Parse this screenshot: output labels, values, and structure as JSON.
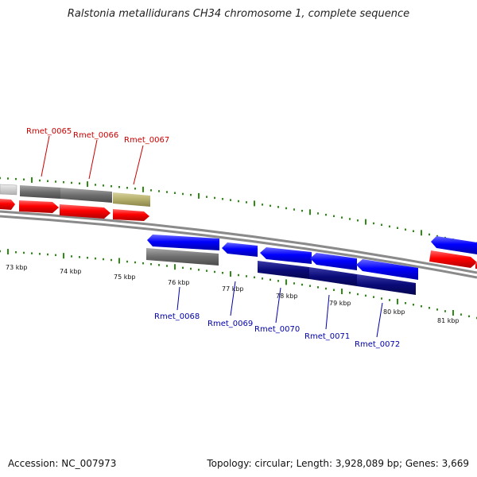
{
  "title": "Ralstonia metallidurans CH34 chromosome 1, complete sequence",
  "footer": {
    "accession": "Accession: NC_007973",
    "topology": "Topology: circular; Length: 3,928,089 bp; Genes: 3,669"
  },
  "colors": {
    "forward_cds": "#ff0000",
    "reverse_cds": "#0000ff",
    "forward_cog": "#6e6e6e",
    "reverse_cog_dark": "#0a0a78",
    "olive": "#b4ae6a",
    "tick": "#2c8c14",
    "label_forward": "#cc0000",
    "label_reverse": "#0000aa"
  },
  "kbp_labels": [
    "73 kbp",
    "74 kbp",
    "75 kbp",
    "76 kbp",
    "77 kbp",
    "78 kbp",
    "79 kbp",
    "80 kbp",
    "81 kbp"
  ],
  "genes_forward": [
    "Rmet_0065",
    "Rmet_0066",
    "Rmet_0067"
  ],
  "genes_reverse": [
    "Rmet_0068",
    "Rmet_0069",
    "Rmet_0070",
    "Rmet_0071",
    "Rmet_0072"
  ]
}
